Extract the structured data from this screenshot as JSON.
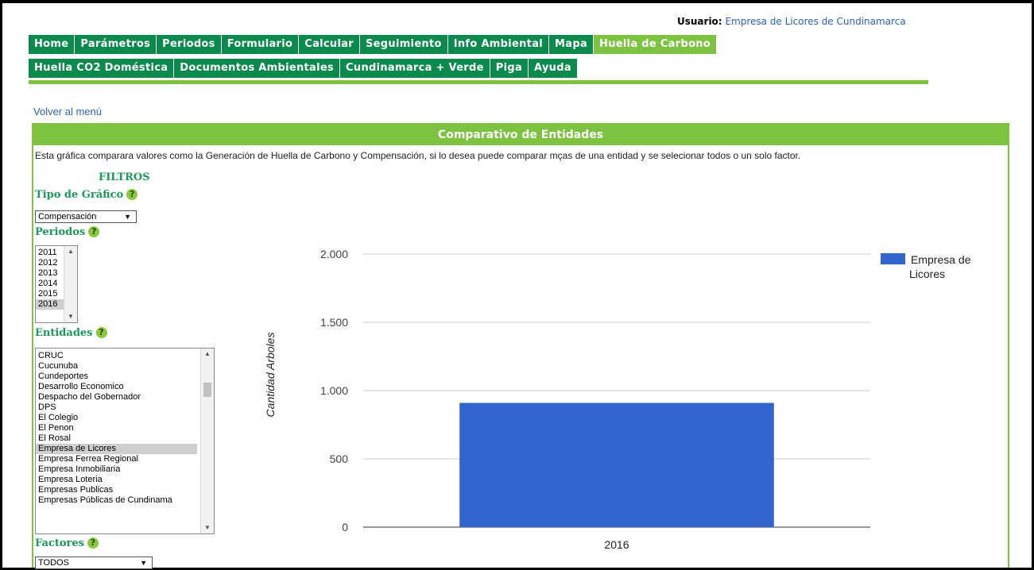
{
  "header": {
    "user_label": "Usuario:",
    "user_name": "Empresa de Licores de Cundinamarca"
  },
  "nav": {
    "row1": [
      "Home",
      "Parámetros",
      "Periodos",
      "Formulario",
      "Calcular",
      "Seguimiento",
      "Info Ambiental",
      "Mapa",
      "Huella de Carbono"
    ],
    "row2": [
      "Huella CO2 Doméstica",
      "Documentos Ambientales",
      "Cundinamarca + Verde",
      "Piga",
      "Ayuda"
    ],
    "active": "Huella de Carbono"
  },
  "back_link": "Volver al menú",
  "panel": {
    "title": "Comparativo de Entidades",
    "description": "Esta gráfica comparara valores como la Generación de Huella de Carbono y Compensación, si lo desea puede comparar mças de una entidad y se selecionar todos o un solo factor."
  },
  "filters": {
    "title": "FILTROS",
    "tipo_label": "Tipo de Gráfico",
    "tipo_value": "Compensación",
    "periodos_label": "Periodos",
    "periodos": [
      "2011",
      "2012",
      "2013",
      "2014",
      "2015",
      "2016"
    ],
    "periodo_selected": "2016",
    "entidades_label": "Entidades",
    "entidades": [
      "CRUC",
      "Cucunuba",
      "Cundeportes",
      "Desarrollo Economico",
      "Despacho del Gobernador",
      "DPS",
      "El Colegio",
      "El Penon",
      "El Rosal",
      "Empresa de Licores",
      "Empresa Ferrea Regional",
      "Empresa Inmobiliaria",
      "Empresa Loteria",
      "Empresas Publicas",
      "Empresas Públicas de Cundinama"
    ],
    "entidad_selected": "Empresa de Licores",
    "factores_label": "Factores",
    "factores_value": "TODOS",
    "help_glyph": "?"
  },
  "chart_data": {
    "type": "bar",
    "categories": [
      "2016"
    ],
    "series": [
      {
        "name": "Empresa de Licores",
        "values": [
          910
        ],
        "color": "#3366cc"
      }
    ],
    "ylabel": "Cantidad Arboles",
    "xlabel": "",
    "ylim": [
      0,
      2000
    ],
    "yticks": [
      0,
      500,
      1000,
      1500,
      2000
    ],
    "ytick_labels": [
      "0",
      "500",
      "1.000",
      "1.500",
      "2.000"
    ],
    "grid": true,
    "legend_position": "right",
    "legend_lines": [
      "Empresa de",
      "Licores"
    ]
  }
}
